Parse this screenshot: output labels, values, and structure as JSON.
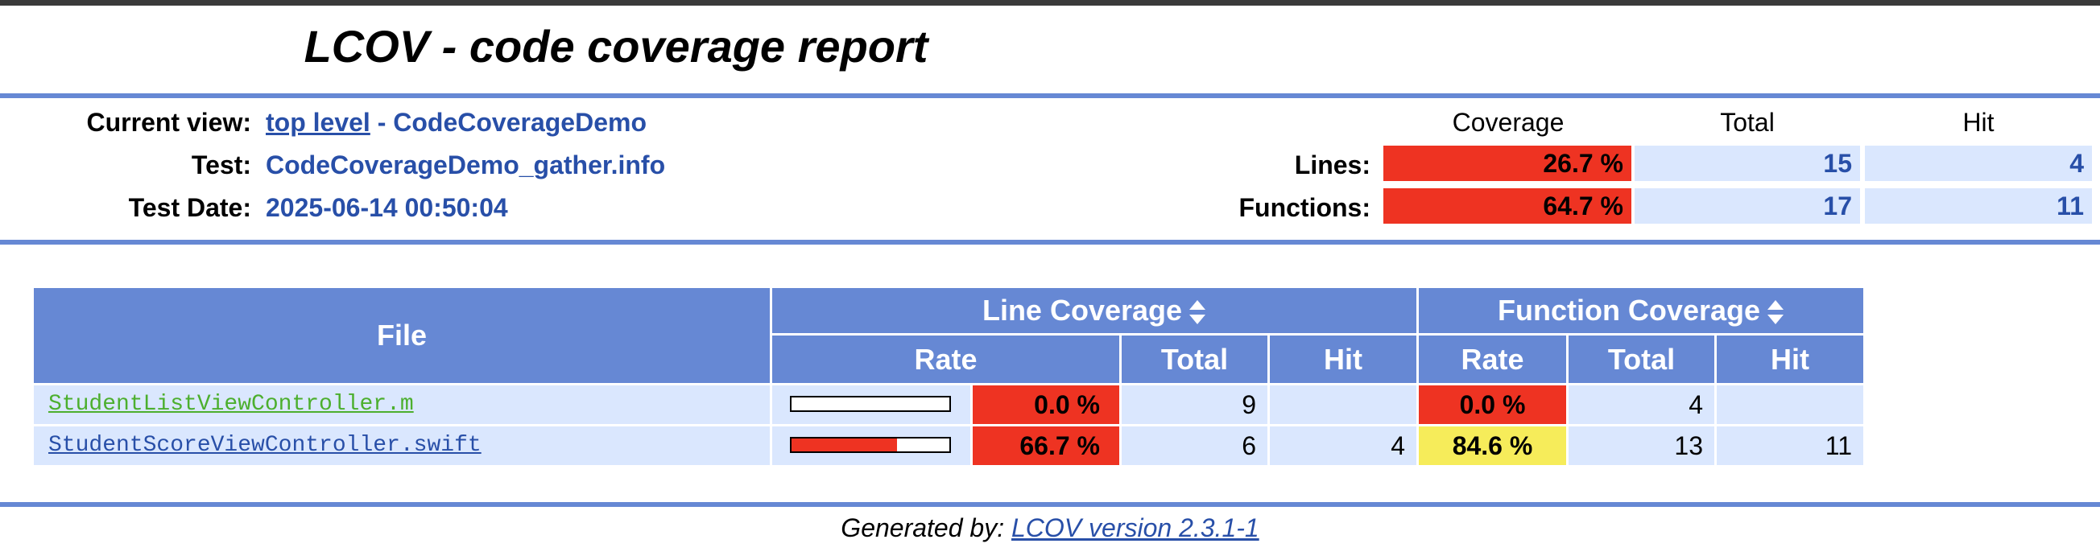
{
  "report": {
    "title": "LCOV - code coverage report"
  },
  "header": {
    "current_view_label": "Current view:",
    "current_view_link": "top level",
    "current_view_rest": " - CodeCoverageDemo",
    "test_label": "Test:",
    "test_value": "CodeCoverageDemo_gather.info",
    "test_date_label": "Test Date:",
    "test_date_value": "2025-06-14 00:50:04",
    "col_coverage": "Coverage",
    "col_total": "Total",
    "col_hit": "Hit",
    "lines_label": "Lines:",
    "lines_coverage": "26.7 %",
    "lines_total": "15",
    "lines_hit": "4",
    "functions_label": "Functions:",
    "functions_coverage": "64.7 %",
    "functions_total": "17",
    "functions_hit": "11"
  },
  "table": {
    "file_header": "File",
    "line_coverage_header": "Line Coverage",
    "function_coverage_header": "Function Coverage",
    "rate_header": "Rate",
    "total_header": "Total",
    "hit_header": "Hit",
    "rows": [
      {
        "file": "StudentListViewController.m",
        "line_rate_fraction": 0.0,
        "line_rate": "0.0 %",
        "line_total": "9",
        "line_hit": "",
        "func_rate": "0.0 %",
        "func_total": "4",
        "func_hit": ""
      },
      {
        "file": "StudentScoreViewController.swift",
        "line_rate_fraction": 0.667,
        "line_rate": "66.7 %",
        "line_total": "6",
        "line_hit": "4",
        "func_rate": "84.6 %",
        "func_total": "13",
        "func_hit": "11"
      }
    ]
  },
  "footer": {
    "generated_by_label": "Generated by: ",
    "generated_by_link": "LCOV version 2.3.1-1"
  },
  "colors": {
    "header_blue": "#6688d4",
    "cell_blue": "#dae7fe",
    "low_red": "#ee3322",
    "medium_yellow": "#f6ec5a",
    "link_blue": "#284fa8",
    "visited_green": "#4caf2e"
  },
  "icons": {
    "sort": "sort-up-down-icon"
  }
}
